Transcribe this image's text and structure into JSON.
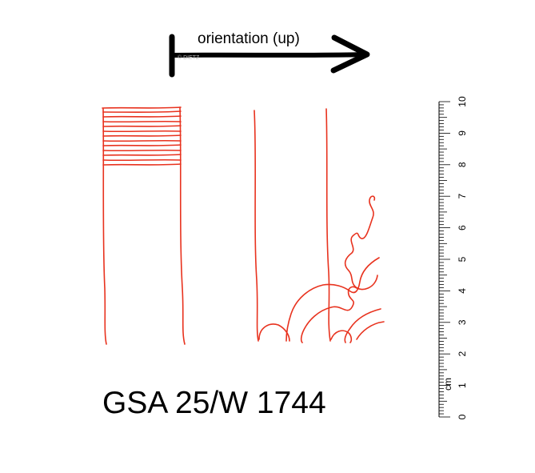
{
  "orientation": {
    "label": "orientation (up)",
    "watermark": "© DIETZ"
  },
  "document_id": "GSA 25/W 1744",
  "scale": {
    "unit": "cm",
    "tick_labels": [
      "0",
      "1",
      "2",
      "3",
      "4",
      "5",
      "6",
      "7",
      "8",
      "9",
      "10"
    ],
    "max": 10
  },
  "colors": {
    "drawing": "#e8321e",
    "ink": "#000000",
    "watermark": "#b8b8b8"
  }
}
